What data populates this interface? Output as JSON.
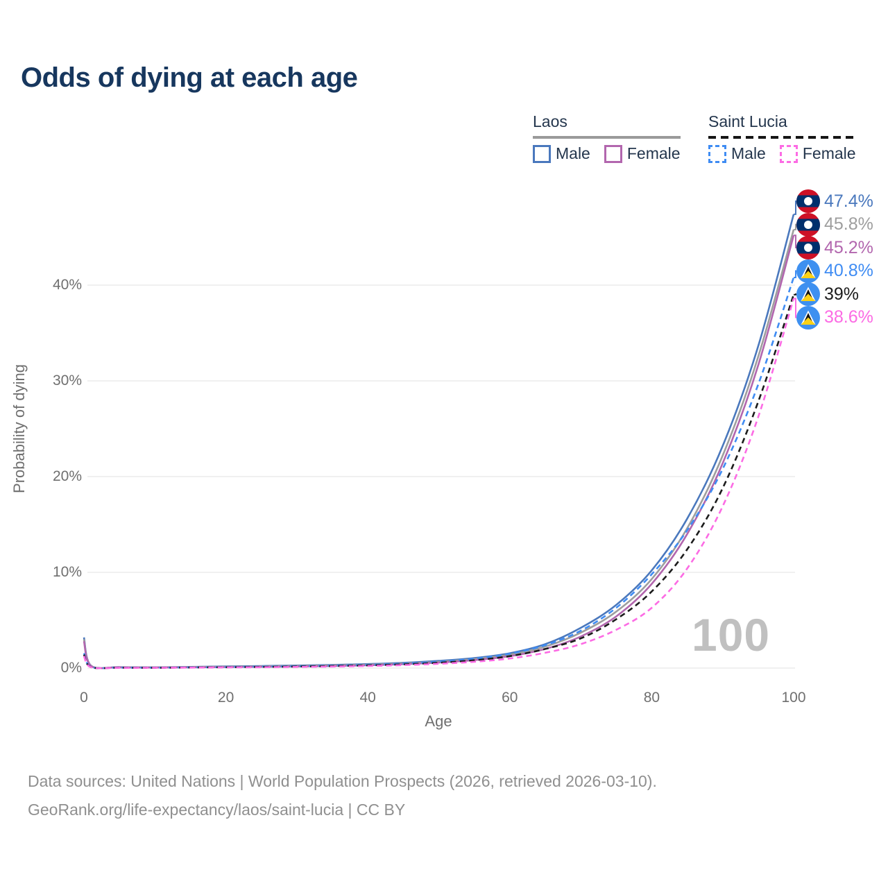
{
  "title": "Odds of dying at each age",
  "legend": {
    "groups": [
      {
        "name": "Laos",
        "underline_style": "solid",
        "underline_color": "#9a9a9a",
        "items": [
          {
            "label": "Male",
            "color": "#4A78BD",
            "dash": false
          },
          {
            "label": "Female",
            "color": "#B266AE",
            "dash": false
          }
        ]
      },
      {
        "name": "Saint Lucia",
        "underline_style": "dashed",
        "underline_color": "#151515",
        "items": [
          {
            "label": "Male",
            "color": "#3F8CF3",
            "dash": true
          },
          {
            "label": "Female",
            "color": "#FC6BE4",
            "dash": true
          }
        ]
      }
    ]
  },
  "chart_data": {
    "type": "line",
    "title": "Odds of dying at each age",
    "xlabel": "Age",
    "ylabel": "Probability of dying",
    "x_ticks": [
      "0",
      "20",
      "40",
      "60",
      "80",
      "100"
    ],
    "x_tick_values": [
      0,
      20,
      40,
      60,
      80,
      100
    ],
    "y_ticks": [
      "0%",
      "10%",
      "20%",
      "30%",
      "40%"
    ],
    "y_tick_values": [
      0,
      10,
      20,
      30,
      40
    ],
    "xlim": [
      0,
      100
    ],
    "ylim_pct": [
      0,
      49.5
    ],
    "grid": "horizontal",
    "age_indicator": "100",
    "x": [
      0,
      1,
      5,
      10,
      15,
      20,
      25,
      30,
      35,
      40,
      45,
      50,
      55,
      60,
      65,
      70,
      75,
      80,
      85,
      90,
      95,
      100
    ],
    "series": [
      {
        "name": "Laos Male",
        "country": "Laos",
        "sex": "Male",
        "style": "solid",
        "color": "#4A78BD",
        "end_label": "47.4%",
        "flag": "laos",
        "values_pct": [
          3.2,
          0.25,
          0.1,
          0.08,
          0.12,
          0.18,
          0.22,
          0.27,
          0.33,
          0.42,
          0.55,
          0.75,
          1.05,
          1.55,
          2.5,
          4.2,
          6.6,
          10.2,
          15.6,
          23.2,
          33.6,
          47.4
        ]
      },
      {
        "name": "Laos Both sexes",
        "country": "Laos",
        "sex": "Both",
        "style": "solid",
        "color": "#9E9E9E",
        "end_label": "45.8%",
        "flag": "laos",
        "values_pct": [
          3.0,
          0.24,
          0.09,
          0.07,
          0.1,
          0.14,
          0.18,
          0.22,
          0.28,
          0.36,
          0.48,
          0.66,
          0.94,
          1.4,
          2.25,
          3.7,
          5.9,
          9.3,
          14.6,
          22.2,
          32.5,
          45.8
        ]
      },
      {
        "name": "Laos Female",
        "country": "Laos",
        "sex": "Female",
        "style": "solid",
        "color": "#B266AE",
        "end_label": "45.2%",
        "flag": "laos",
        "values_pct": [
          2.8,
          0.22,
          0.08,
          0.06,
          0.08,
          0.11,
          0.14,
          0.17,
          0.22,
          0.3,
          0.41,
          0.58,
          0.83,
          1.25,
          2.0,
          3.3,
          5.4,
          8.8,
          14.0,
          21.4,
          31.6,
          45.2
        ]
      },
      {
        "name": "Saint Lucia Male",
        "country": "Saint Lucia",
        "sex": "Male",
        "style": "dashed",
        "color": "#3F8CF3",
        "end_label": "40.8%",
        "flag": "saint-lucia",
        "values_pct": [
          1.55,
          0.12,
          0.05,
          0.04,
          0.07,
          0.11,
          0.15,
          0.19,
          0.25,
          0.33,
          0.46,
          0.66,
          0.97,
          1.5,
          2.4,
          3.9,
          6.3,
          9.8,
          14.4,
          20.8,
          29.6,
          40.8
        ]
      },
      {
        "name": "Saint Lucia Both sexes",
        "country": "Saint Lucia",
        "sex": "Both",
        "style": "dashed",
        "color": "#1C1C1C",
        "end_label": "39%",
        "flag": "saint-lucia",
        "values_pct": [
          1.4,
          0.1,
          0.04,
          0.03,
          0.06,
          0.09,
          0.12,
          0.16,
          0.21,
          0.28,
          0.39,
          0.56,
          0.82,
          1.25,
          2.0,
          3.1,
          5.1,
          8.0,
          12.4,
          18.8,
          27.8,
          39.0
        ]
      },
      {
        "name": "Saint Lucia Female",
        "country": "Saint Lucia",
        "sex": "Female",
        "style": "dashed",
        "color": "#FC6BE4",
        "end_label": "38.6%",
        "flag": "saint-lucia",
        "values_pct": [
          1.25,
          0.09,
          0.03,
          0.03,
          0.05,
          0.07,
          0.09,
          0.12,
          0.16,
          0.22,
          0.31,
          0.45,
          0.66,
          1.0,
          1.6,
          2.5,
          4.0,
          6.3,
          10.4,
          16.9,
          26.2,
          38.6
        ]
      }
    ]
  },
  "flags": {
    "laos": {
      "red": "#CE1126",
      "blue": "#002F6C",
      "white": "#FFFFFF"
    },
    "saint_lucia": {
      "field": "#3E90F0",
      "yellow": "#FCD116",
      "white": "#FFFFFF",
      "black": "#151515"
    }
  },
  "colors": {
    "title": "#17375e",
    "axis_text": "#6f6f6f",
    "gridline": "#ebebeb",
    "watermark": "#c0c0c0",
    "footer": "#8f8f8f",
    "legend_text": "#24364d"
  },
  "footer": {
    "line1": "Data sources: United Nations | World Population Prospects (2026, retrieved 2026-03-10).",
    "line2": "GeoRank.org/life-expectancy/laos/saint-lucia | CC BY"
  }
}
